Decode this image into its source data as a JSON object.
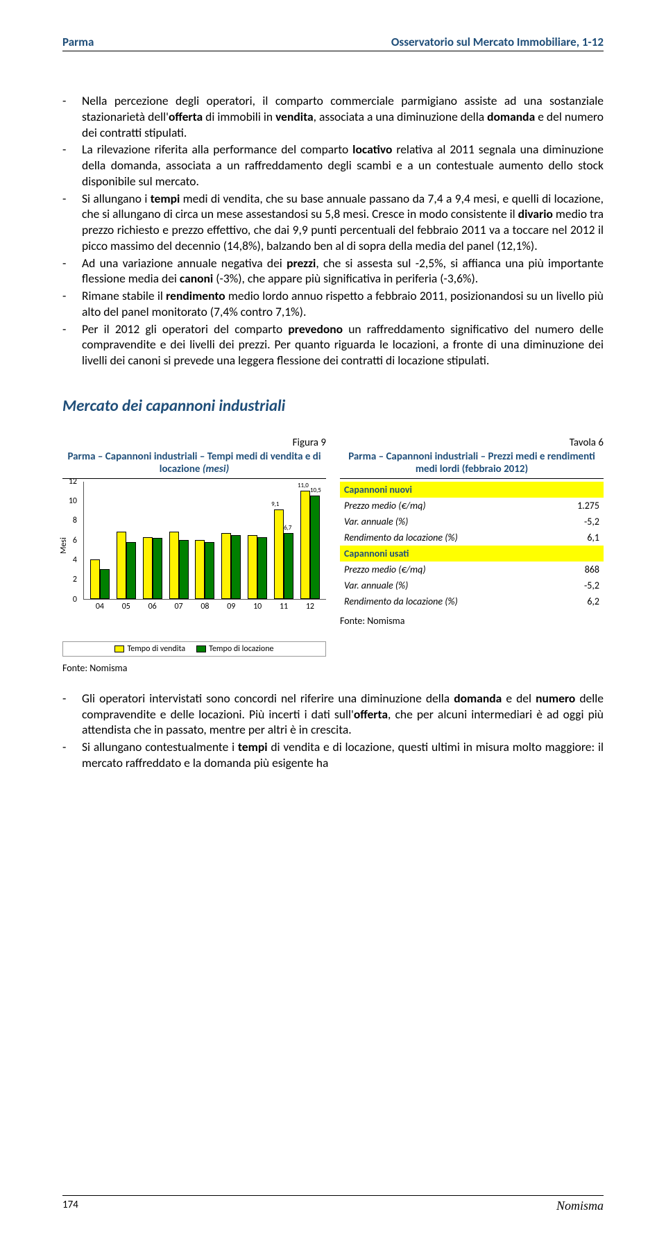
{
  "header": {
    "left": "Parma",
    "right": "Osservatorio sul Mercato Immobiliare, 1-12"
  },
  "bullets_top": [
    "Nella percezione degli operatori, il comparto commerciale parmigiano assiste ad una sostanziale stazionarietà dell'<b>offerta</b> di immobili in <b>vendita</b>, associata a una diminuzione della <b>domanda</b> e del numero dei contratti stipulati.",
    "La rilevazione riferita alla performance del comparto <b>locativo</b> relativa al 2011 segnala una diminuzione della domanda, associata a un raffreddamento degli scambi e a un contestuale aumento dello stock disponibile sul mercato.",
    "Si allungano i <b>tempi</b> medi di vendita, che su base annuale passano da 7,4 a 9,4 mesi, e quelli di locazione, che si allungano di circa un mese assestandosi su 5,8 mesi. Cresce in modo consistente il <b>divario</b> medio tra prezzo richiesto e prezzo effettivo, che dai 9,9 punti percentuali del febbraio 2011 va a toccare nel 2012 il picco massimo del decennio (14,8%), balzando ben al di sopra della media del panel (12,1%).",
    "Ad una variazione annuale negativa dei <b>prezzi</b>, che si assesta sul -2,5%, si affianca una più importante flessione media dei <b>canoni</b> (-3%), che appare più significativa in periferia (-3,6%).",
    "Rimane stabile il <b>rendimento</b> medio lordo annuo rispetto a febbraio 2011, posizionandosi su un livello più alto del panel monitorato (7,4% contro 7,1%).",
    "Per il 2012 gli operatori del comparto <b>prevedono</b> un raffreddamento significativo del numero delle compravendite e dei livelli dei prezzi. Per quanto riguarda le locazioni, a fronte di una diminuzione dei livelli dei canoni si prevede una leggera flessione dei contratti di locazione stipulati."
  ],
  "section2_title": "Mercato dei capannoni industriali",
  "figure9": {
    "label": "Figura 9",
    "title_bold": "Parma – Capannoni industriali – Tempi medi di vendita e di locazione",
    "title_italic": " (mesi)",
    "y_max": 12,
    "y_step": 2,
    "y_axis": "Mesi",
    "categories": [
      "04",
      "05",
      "06",
      "07",
      "08",
      "09",
      "10",
      "11",
      "12"
    ],
    "vendita": [
      4.0,
      6.8,
      6.3,
      6.8,
      6.0,
      6.7,
      6.5,
      9.1,
      11.0
    ],
    "locazione": [
      3.0,
      5.8,
      6.2,
      6.0,
      5.8,
      6.5,
      6.3,
      6.7,
      10.5
    ],
    "annotations": [
      {
        "text": "9,1",
        "x_idx": 7,
        "series": "vendita"
      },
      {
        "text": "6,7",
        "x_idx": 7,
        "series": "locazione"
      },
      {
        "text": "11,0",
        "x_idx": 8,
        "series": "vendita"
      },
      {
        "text": "10,5",
        "x_idx": 8,
        "series": "locazione"
      }
    ],
    "legend": [
      "Tempo di vendita",
      "Tempo di locazione"
    ],
    "colors": {
      "vendita": "#fff200",
      "locazione": "#008000"
    },
    "source": "Fonte: Nomisma"
  },
  "tavola6": {
    "label": "Tavola 6",
    "title_bold": "Parma – Capannoni industriali – Prezzi medi e rendimenti medi lordi (febbraio 2012)",
    "rows": [
      {
        "type": "header",
        "label": "Capannoni nuovi"
      },
      {
        "type": "data",
        "label": "Prezzo medio (€/mq)",
        "value": "1.275"
      },
      {
        "type": "data",
        "label": "Var. annuale (%)",
        "value": "-5,2"
      },
      {
        "type": "data",
        "label": "Rendimento da locazione (%)",
        "value": "6,1"
      },
      {
        "type": "header",
        "label": "Capannoni usati"
      },
      {
        "type": "data",
        "label": "Prezzo medio (€/mq)",
        "value": "868"
      },
      {
        "type": "data",
        "label": "Var. annuale (%)",
        "value": "-5,2"
      },
      {
        "type": "data",
        "label": "Rendimento da locazione (%)",
        "value": "6,2"
      }
    ],
    "source": "Fonte: Nomisma"
  },
  "bullets_bottom": [
    "Gli operatori intervistati sono concordi nel riferire una diminuzione della <b>domanda</b> e del <b>numero</b> delle compravendite e delle locazioni. Più incerti i dati sull'<b>offerta</b>, che per alcuni intermediari è ad oggi più attendista che in passato, mentre per altri è in crescita.",
    "Si allungano contestualmente i <b>tempi</b> di vendita e di locazione, questi ultimi in misura molto maggiore: il mercato raffreddato e la domanda più esigente ha"
  ],
  "footer": {
    "page": "174",
    "brand": "Nomisma"
  }
}
